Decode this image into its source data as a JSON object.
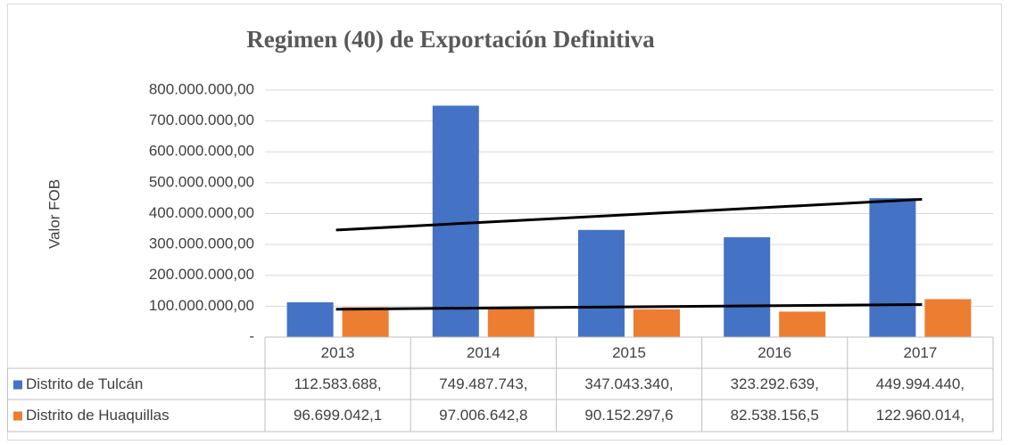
{
  "chart_data": {
    "type": "bar",
    "title": "Regimen (40) de Exportación Definitiva",
    "y_label": "Valor FOB",
    "categories": [
      "2013",
      "2014",
      "2015",
      "2016",
      "2017"
    ],
    "series": [
      {
        "name": "Distrito de Tulcán",
        "color": "#4472c4",
        "values": [
          112583688,
          749487743,
          347043340,
          323292639,
          449994440
        ],
        "value_labels": [
          "112.583.688,",
          "749.487.743,",
          "347.043.340,",
          "323.292.639,",
          "449.994.440,"
        ]
      },
      {
        "name": "Distrito de Huaquillas",
        "color": "#ed7d31",
        "values": [
          96699042.1,
          97006642.8,
          90152297.6,
          82538156.5,
          122960014
        ],
        "value_labels": [
          "96.699.042,1",
          "97.006.642,8",
          "90.152.297,6",
          "82.538.156,5",
          "122.960.014,"
        ]
      }
    ],
    "ylim": [
      0,
      800000000
    ],
    "yticks": [
      {
        "value": 0,
        "label": "-"
      },
      {
        "value": 100000000,
        "label": "100.000.000,00"
      },
      {
        "value": 200000000,
        "label": "200.000.000,00"
      },
      {
        "value": 300000000,
        "label": "300.000.000,00"
      },
      {
        "value": 400000000,
        "label": "400.000.000,00"
      },
      {
        "value": 500000000,
        "label": "500.000.000,00"
      },
      {
        "value": 600000000,
        "label": "600.000.000,00"
      },
      {
        "value": 700000000,
        "label": "700.000.000,00"
      },
      {
        "value": 800000000,
        "label": "800.000.000,00"
      }
    ],
    "grid": true,
    "trendlines": true,
    "data_table": true
  }
}
